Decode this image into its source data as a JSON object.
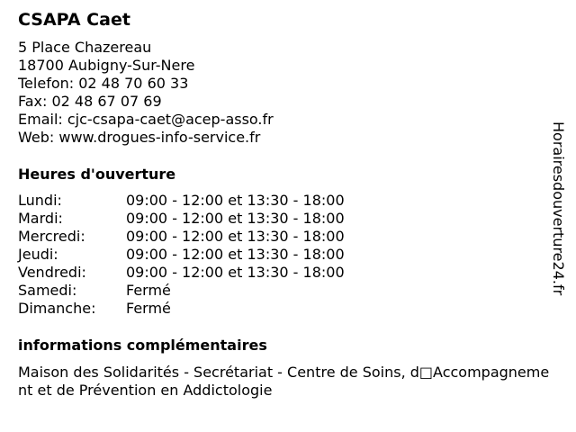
{
  "title": "CSAPA Caet",
  "address": [
    "5 Place Chazereau",
    "18700 Aubigny-Sur-Nere",
    "Telefon: 02 48 70 60 33",
    "Fax: 02 48 67 07 69",
    "Email: cjc-csapa-caet@acep-asso.fr",
    "Web: www.drogues-info-service.fr"
  ],
  "hours_heading": "Heures d'ouverture",
  "hours": [
    {
      "day": "Lundi:",
      "time": "09:00 - 12:00 et 13:30 - 18:00"
    },
    {
      "day": "Mardi:",
      "time": "09:00 - 12:00 et 13:30 - 18:00"
    },
    {
      "day": "Mercredi:",
      "time": "09:00 - 12:00 et 13:30 - 18:00"
    },
    {
      "day": "Jeudi:",
      "time": "09:00 - 12:00 et 13:30 - 18:00"
    },
    {
      "day": "Vendredi:",
      "time": "09:00 - 12:00 et 13:30 - 18:00"
    },
    {
      "day": "Samedi:",
      "time": "Fermé"
    },
    {
      "day": "Dimanche:",
      "time": "Fermé"
    }
  ],
  "info_heading": "informations complémentaires",
  "info_text": "Maison des Solidarités - Secrétariat - Centre de Soins, d□Accompagnement et de Prévention en Addictologie",
  "watermark": "Horairesdouverture24.fr"
}
